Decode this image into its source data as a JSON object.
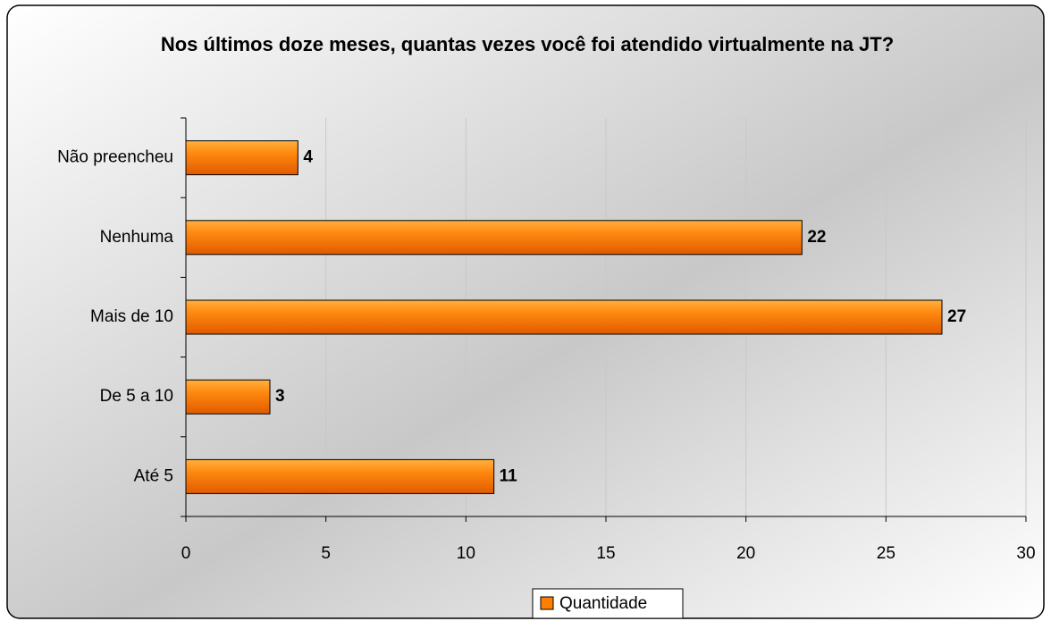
{
  "chart_data": {
    "type": "hbar",
    "title": "Nos últimos doze meses, quantas vezes você foi atendido virtualmente na JT?",
    "categories": [
      "Não preencheu",
      "Nenhuma",
      "Mais de 10",
      "De 5 a 10",
      "Até 5"
    ],
    "series": [
      {
        "name": "Quantidade",
        "color": "#ff7f00",
        "values": [
          4,
          22,
          27,
          3,
          11
        ]
      }
    ],
    "xlim": [
      0,
      30
    ],
    "xticks": [
      0,
      5,
      10,
      15,
      20,
      25,
      30
    ],
    "grid": true,
    "legend": "bottom"
  }
}
